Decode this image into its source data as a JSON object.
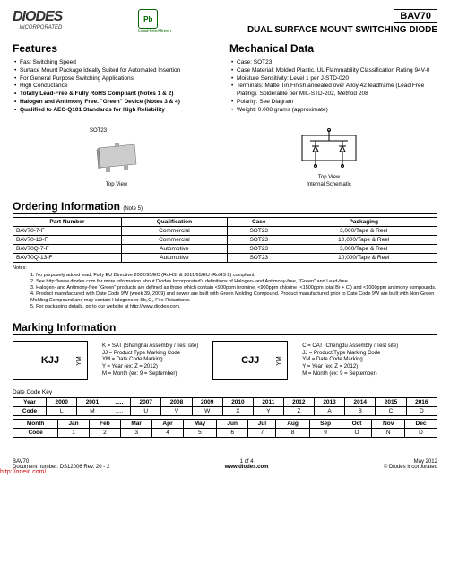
{
  "header": {
    "logo_main": "DIODES",
    "logo_sub": "INCORPORATED",
    "badge": "Pb",
    "badge_label": "Lead-free/Green",
    "part": "BAV70",
    "subtitle": "DUAL SURFACE MOUNT SWITCHING DIODE"
  },
  "features": {
    "title": "Features",
    "items": [
      "Fast Switching Speed",
      "Surface Mount Package Ideally Suited for Automated Insertion",
      "For General Purpose Switching Applications",
      "High Conductance",
      "Totally Lead-Free & Fully RoHS Compliant (Notes 1 & 2)",
      "Halogen and Antimony Free. \"Green\" Device (Notes 3 & 4)",
      "Qualified to AEC-Q101 Standards for High Reliability"
    ],
    "bold_from_index": 4
  },
  "mechanical": {
    "title": "Mechanical Data",
    "items": [
      "Case: SOT23",
      "Case Material: Molded Plastic. UL Flammability Classification Rating 94V-0",
      "Moisture Sensitivity: Level 1 per J-STD-020",
      "Terminals: Matte Tin Finish annealed over Alloy 42 leadframe (Lead Free Plating). Solderable per MIL-STD-202, Method 208",
      "Polarity: See Diagram",
      "Weight: 0.008 grams (approximate)"
    ]
  },
  "images": {
    "left_top_label": "SOT23",
    "left_label": "Top View",
    "right_label_1": "Top View",
    "right_label_2": "Internal Schematic"
  },
  "ordering": {
    "title": "Ordering Information",
    "title_note": "(Note 5)",
    "headers": [
      "Part Number",
      "Qualification",
      "Case",
      "Packaging"
    ],
    "rows": [
      [
        "BAV70-7-F",
        "Commercial",
        "SOT23",
        "3,000/Tape & Reel"
      ],
      [
        "BAV70-13-F",
        "Commercial",
        "SOT23",
        "10,000/Tape & Reel"
      ],
      [
        "BAV70Q-7-F",
        "Automotive",
        "SOT23",
        "3,000/Tape & Reel"
      ],
      [
        "BAV70Q-13-F",
        "Automotive",
        "SOT23",
        "10,000/Tape & Reel"
      ]
    ]
  },
  "notes": {
    "label": "Notes:",
    "lines": [
      "1. No purposely added lead. Fully EU Directive 2002/95/EC (RoHS) & 2011/65/EU (RoHS 2) compliant.",
      "2. See http://www.diodes.com for more information about Diodes Incorporated's definitions of Halogen- and Antimony-free, \"Green\" and Lead-free.",
      "3. Halogen- and Antimony-free \"Green\" products are defined as those which contain <900ppm bromine, <900ppm chlorine (<1500ppm total Br + Cl) and <1000ppm antimony compounds.",
      "4. Product manufactured with Date Code 9W (week 39, 2009) and newer are built with Green Molding Compound. Product manufactured prior to Date Code 9W are built with Non-Green Molding Compound and may contain Halogens or Sb₂O₃ Fire Retardants.",
      "5. For packaging details, go to our website at http://www.diodes.com."
    ]
  },
  "marking": {
    "title": "Marking Information",
    "box1_main": "KJJ",
    "box1_side": "YM",
    "box2_main": "CJJ",
    "box2_side": "YM",
    "desc1": [
      "K = SAT (Shanghai Assembly / Test site)",
      "JJ = Product Type Marking Code",
      "YM = Date Code Marking",
      "Y = Year (ex: Z = 2012)",
      "M = Month (ex: 9 = September)"
    ],
    "desc2": [
      "C = CAT (Chengdu Assembly / Test site)",
      "JJ = Product Type Marking Code",
      "YM = Date Code Marking",
      "Y = Year (ex: Z = 2012)",
      "M = Month (ex: 9 = September)"
    ]
  },
  "date_key": {
    "label": "Date Code Key",
    "year_row_h": "Year",
    "year_cells": [
      "2000",
      "2001",
      ".....",
      "2007",
      "2008",
      "2009",
      "2010",
      "2011",
      "2012",
      "2013",
      "2014",
      "2015",
      "2016"
    ],
    "code_row_h": "Code",
    "code_cells": [
      "L",
      "M",
      ".....",
      "U",
      "V",
      "W",
      "X",
      "Y",
      "Z",
      "A",
      "B",
      "C",
      "D"
    ],
    "month_row_h": "Month",
    "month_cells": [
      "Jan",
      "Feb",
      "Mar",
      "Apr",
      "May",
      "Jun",
      "Jul",
      "Aug",
      "Sep",
      "Oct",
      "Nov",
      "Dec"
    ],
    "mcode_row_h": "Code",
    "mcode_cells": [
      "1",
      "2",
      "3",
      "4",
      "5",
      "6",
      "7",
      "8",
      "9",
      "O",
      "N",
      "D"
    ]
  },
  "footer": {
    "left1": "BAV70",
    "left2": "Document number: DS12006 Rev. 20 - 2",
    "center1": "1 of 4",
    "center2": "www.diodes.com",
    "right1": "May 2012",
    "right2": "© Diodes Incorporated",
    "watermark": "http://oneic.com/"
  }
}
